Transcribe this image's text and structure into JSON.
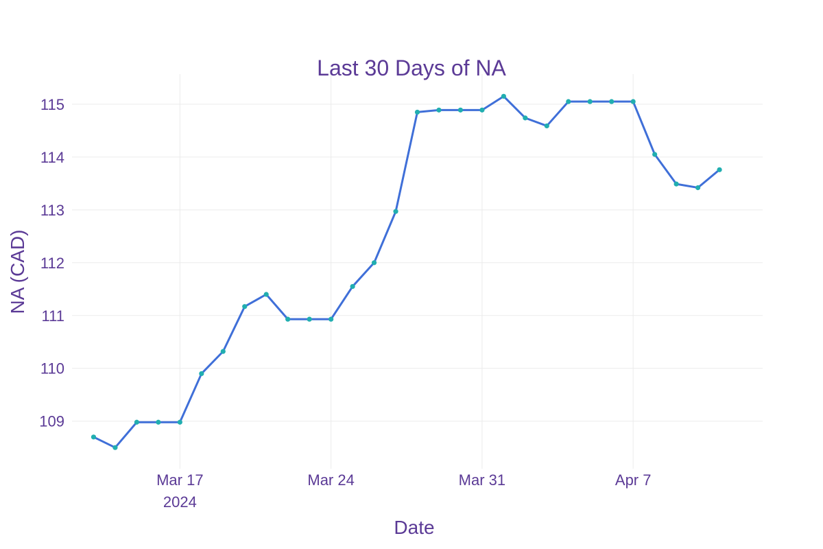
{
  "colors": {
    "text": "#5b3a96",
    "line": "#3f6fd8",
    "marker": "#21aeb0",
    "grid": "#ebebeb",
    "background": "#ffffff"
  },
  "chart_data": {
    "type": "line",
    "title": "Last 30 Days of NA",
    "xlabel": "Date",
    "ylabel": "NA (CAD)",
    "grid": true,
    "x_ticks": [
      {
        "date": "2024-03-17",
        "label": "Mar 17",
        "sublabel": "2024"
      },
      {
        "date": "2024-03-24",
        "label": "Mar 24",
        "sublabel": ""
      },
      {
        "date": "2024-03-31",
        "label": "Mar 31",
        "sublabel": ""
      },
      {
        "date": "2024-04-07",
        "label": "Apr 7",
        "sublabel": ""
      }
    ],
    "y_ticks": [
      109,
      110,
      111,
      112,
      113,
      114,
      115
    ],
    "xlim": [
      "2024-03-12",
      "2024-04-13"
    ],
    "ylim": [
      108.1,
      115.57
    ],
    "series": [
      {
        "mode": "lines+markers",
        "x": [
          "2024-03-13",
          "2024-03-14",
          "2024-03-15",
          "2024-03-16",
          "2024-03-17",
          "2024-03-18",
          "2024-03-19",
          "2024-03-20",
          "2024-03-21",
          "2024-03-22",
          "2024-03-23",
          "2024-03-24",
          "2024-03-25",
          "2024-03-26",
          "2024-03-27",
          "2024-03-28",
          "2024-03-29",
          "2024-03-30",
          "2024-03-31",
          "2024-04-01",
          "2024-04-02",
          "2024-04-03",
          "2024-04-04",
          "2024-04-05",
          "2024-04-06",
          "2024-04-07",
          "2024-04-08",
          "2024-04-09",
          "2024-04-10",
          "2024-04-11"
        ],
        "y": [
          108.7,
          108.5,
          108.98,
          108.98,
          108.98,
          109.9,
          110.32,
          111.17,
          111.4,
          110.93,
          110.93,
          110.93,
          111.55,
          112.0,
          112.97,
          114.85,
          114.89,
          114.89,
          114.89,
          115.15,
          114.74,
          114.59,
          115.05,
          115.05,
          115.05,
          115.05,
          114.05,
          113.49,
          113.42,
          113.76
        ]
      }
    ]
  }
}
